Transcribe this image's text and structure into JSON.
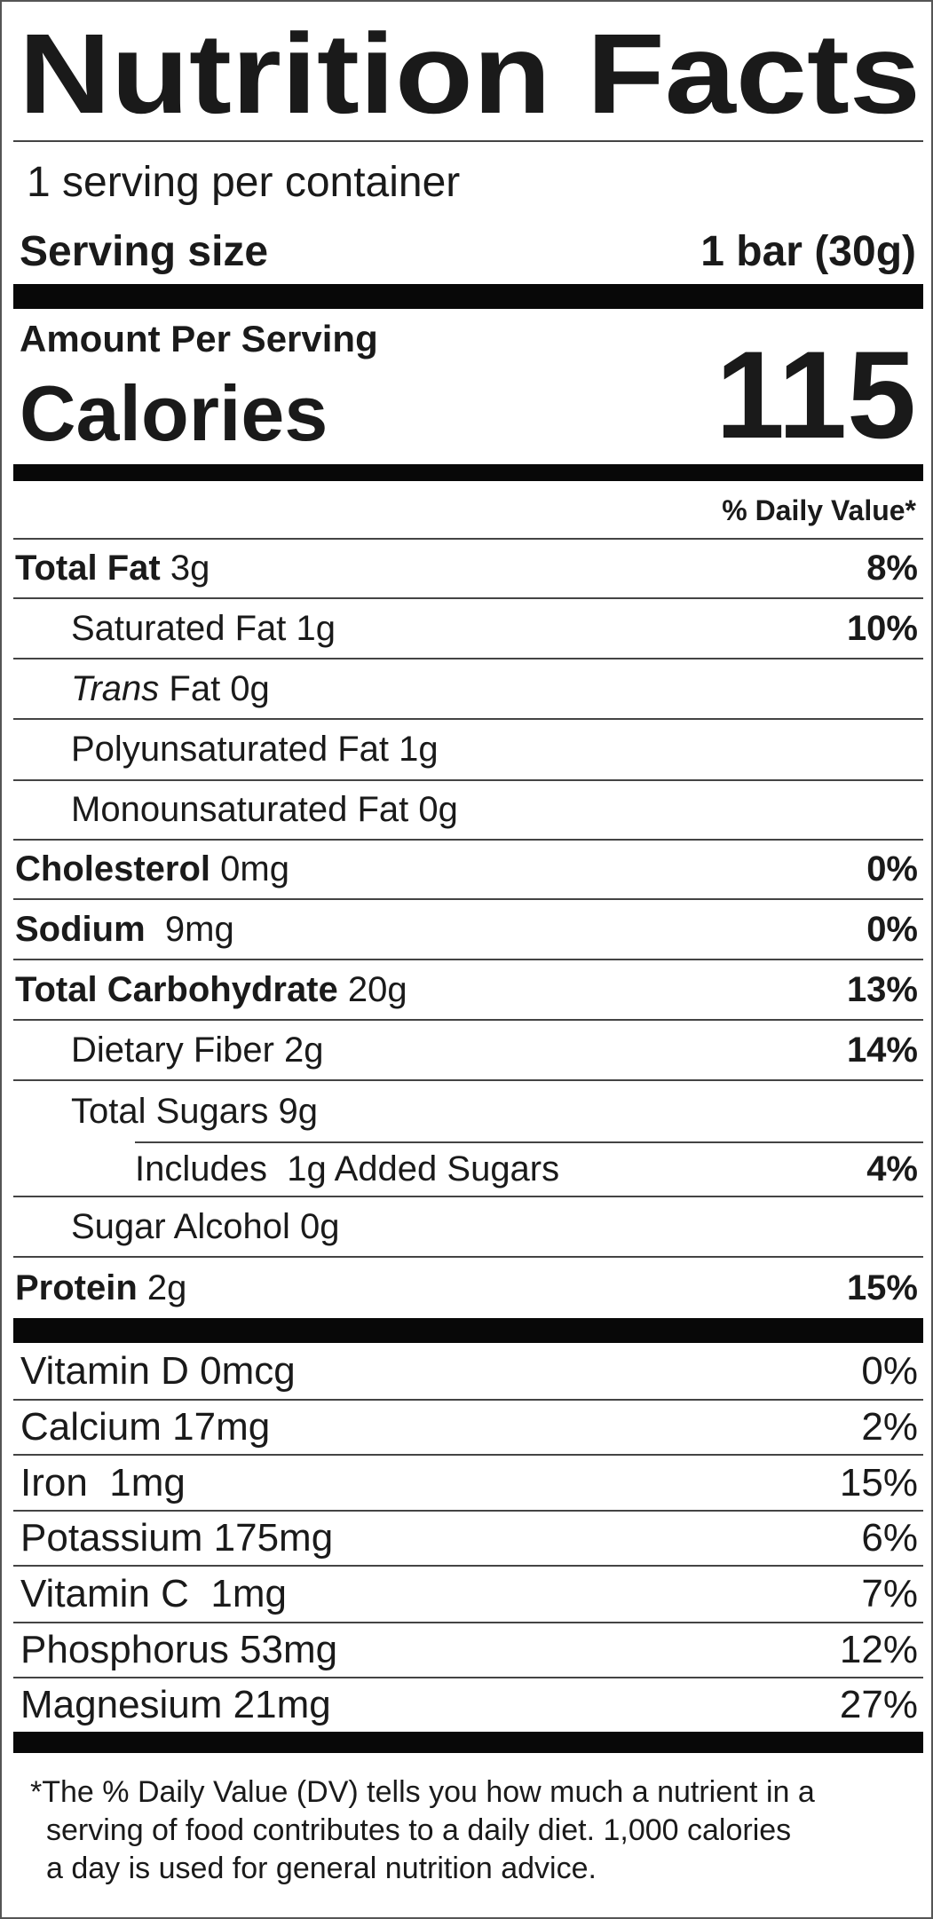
{
  "title": "Nutrition Facts",
  "servings_per_container": "1 serving per container",
  "serving_size_label": "Serving size",
  "serving_size_value": "1 bar (30g)",
  "amount_per_serving": "Amount Per Serving",
  "calories_label": "Calories",
  "calories_value": "115",
  "daily_value_header": "% Daily Value*",
  "nutrients": [
    {
      "bold": "Total Fat",
      "amount": " 3g",
      "dv": "8%",
      "indent": 0
    },
    {
      "text": "Saturated Fat 1g",
      "dv": "10%",
      "indent": 1
    },
    {
      "italic": "Trans",
      "amount": " Fat 0g",
      "dv": "",
      "indent": 1
    },
    {
      "text": "Polyunsaturated Fat 1g",
      "dv": "",
      "indent": 1
    },
    {
      "text": "Monounsaturated Fat 0g",
      "dv": "",
      "indent": 1
    },
    {
      "bold": "Cholesterol",
      "amount": " 0mg",
      "dv": "0%",
      "indent": 0
    },
    {
      "bold": "Sodium",
      "amount": "  9mg",
      "dv": "0%",
      "indent": 0
    },
    {
      "bold": "Total Carbohydrate",
      "amount": " 20g",
      "dv": "13%",
      "indent": 0
    },
    {
      "text": "Dietary Fiber 2g",
      "dv": "14%",
      "indent": 1
    },
    {
      "text": "Total Sugars 9g",
      "dv": "",
      "indent": 1
    },
    {
      "text": "Includes  1g Added Sugars",
      "dv": "4%",
      "indent": 2
    },
    {
      "text": "Sugar Alcohol 0g",
      "dv": "",
      "indent": 1
    },
    {
      "bold": "Protein",
      "amount": " 2g",
      "dv": "15%",
      "indent": 0
    }
  ],
  "vitamins": [
    {
      "label": "Vitamin D 0mcg",
      "dv": "0%"
    },
    {
      "label": "Calcium 17mg",
      "dv": "2%"
    },
    {
      "label": "Iron  1mg",
      "dv": "15%"
    },
    {
      "label": "Potassium 175mg",
      "dv": "6%"
    },
    {
      "label": "Vitamin C  1mg",
      "dv": "7%"
    },
    {
      "label": "Phosphorus 53mg",
      "dv": "12%"
    },
    {
      "label": "Magnesium 21mg",
      "dv": "27%"
    }
  ],
  "footnote": [
    "*The % Daily Value (DV) tells you how much a nutrient in a",
    "serving of food contributes  to a daily  diet. 1,000 calories",
    "a day is used for general nutrition advice."
  ]
}
